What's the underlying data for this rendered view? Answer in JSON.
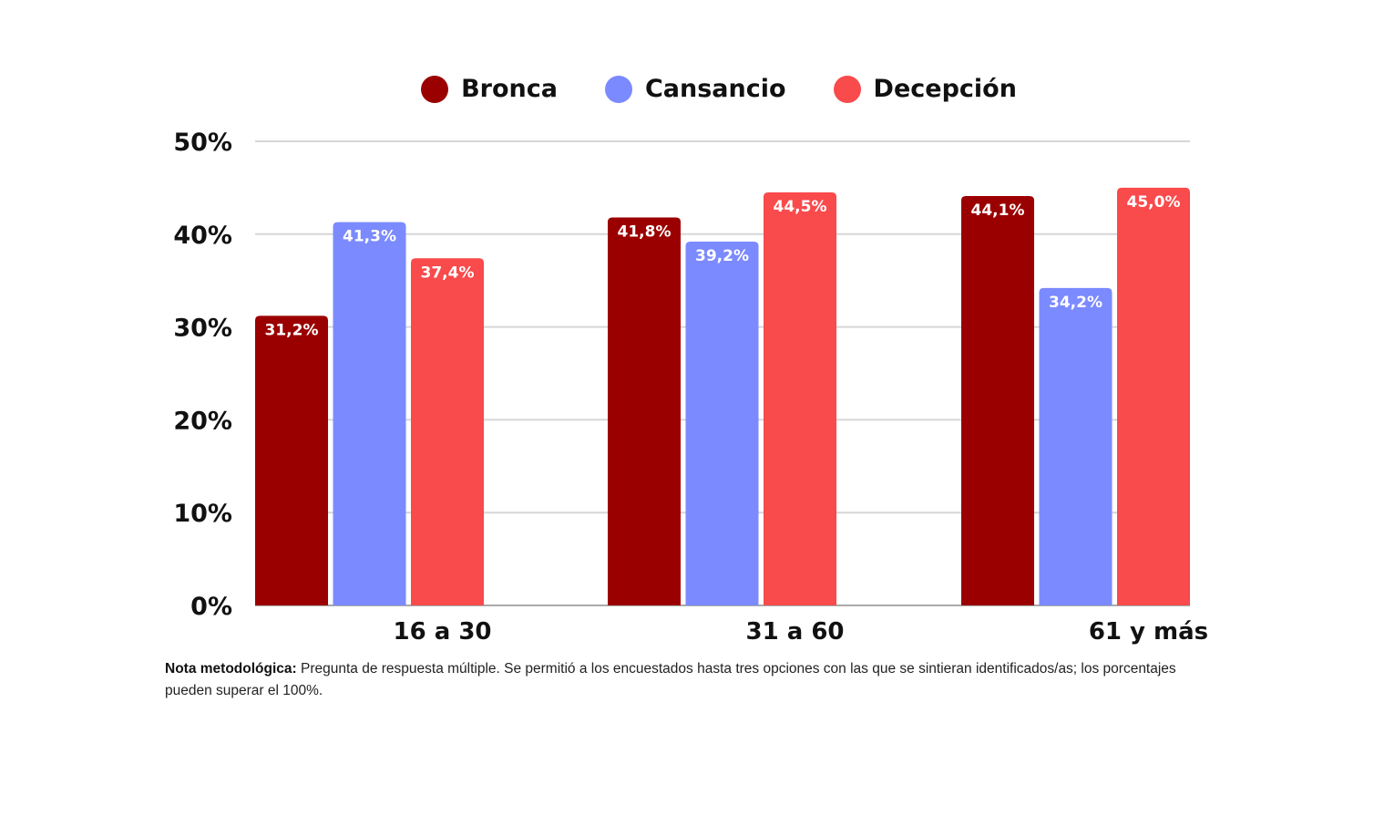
{
  "chart_data": {
    "type": "bar",
    "categories": [
      "16 a 30",
      "31 a 60",
      "61 y más"
    ],
    "series": [
      {
        "name": "Bronca",
        "color": "#9b0000",
        "values": [
          31.2,
          41.8,
          44.1
        ],
        "labels": [
          "31,2%",
          "41,8%",
          "44,1%"
        ]
      },
      {
        "name": "Cansancio",
        "color": "#7b8afe",
        "values": [
          41.3,
          39.2,
          34.2
        ],
        "labels": [
          "41,3%",
          "39,2%",
          "34,2%"
        ]
      },
      {
        "name": "Decepción",
        "color": "#f94a4c",
        "values": [
          37.4,
          44.5,
          45.0
        ],
        "labels": [
          "37,4%",
          "44,5%",
          "45,0%"
        ]
      }
    ],
    "yticks": [
      0,
      10,
      20,
      30,
      40,
      50
    ],
    "ytick_labels": [
      "0%",
      "10%",
      "20%",
      "30%",
      "40%",
      "50%"
    ],
    "ylim": [
      0,
      50
    ],
    "grid": true,
    "legend_position": "top-center",
    "title": "",
    "xlabel": "",
    "ylabel": ""
  },
  "note": {
    "label": "Nota metodológica:",
    "text": " Pregunta de respuesta múltiple. Se permitió a los encuestados hasta tres opciones con las que se sintieran identificados/as; los porcentajes pueden superar el 100%."
  }
}
